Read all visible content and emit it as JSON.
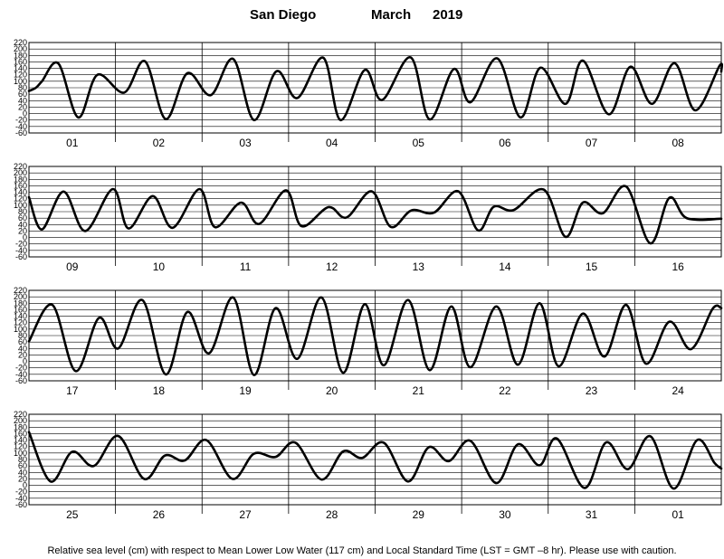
{
  "header": {
    "location": "San Diego",
    "month": "March",
    "year": "2019"
  },
  "footer": {
    "note": "Relative sea level (cm) with respect to Mean Lower Low Water (117 cm) and Local Standard Time (LST = GMT –8 hr). Please use with caution."
  },
  "chart_data": {
    "type": "line",
    "title": "San Diego March 2019",
    "ylabel": "Relative sea level (cm)",
    "ylim": [
      -60,
      220
    ],
    "yticks": [
      -60,
      -40,
      -20,
      0,
      20,
      40,
      60,
      80,
      100,
      120,
      140,
      160,
      180,
      200,
      220
    ],
    "grid": true,
    "x_units": "days (LST)",
    "panels": [
      {
        "days": [
          "01",
          "02",
          "03",
          "04",
          "05",
          "06",
          "07",
          "08"
        ],
        "x": [
          0,
          0.08,
          0.15,
          0.34,
          0.57,
          0.79,
          1.1,
          1.34,
          1.58,
          1.83,
          2.1,
          2.36,
          2.6,
          2.86,
          3.1,
          3.4,
          3.6,
          3.88,
          4.08,
          4.41,
          4.63,
          4.91,
          5.1,
          5.41,
          5.68,
          5.91,
          6.2,
          6.4,
          6.7,
          6.95,
          7.2,
          7.46,
          7.7,
          7.98,
          8.0
        ],
        "y": [
          70,
          80,
          100,
          155,
          -12,
          120,
          65,
          162,
          -17,
          125,
          57,
          169,
          -20,
          131,
          48,
          173,
          -20,
          135,
          42,
          174,
          -18,
          138,
          35,
          171,
          -12,
          142,
          30,
          164,
          -2,
          145,
          30,
          156,
          10,
          148,
          130
        ]
      },
      {
        "days": [
          "09",
          "10",
          "11",
          "12",
          "13",
          "14",
          "15",
          "16"
        ],
        "x": [
          0,
          0.15,
          0.4,
          0.65,
          0.97,
          1.15,
          1.43,
          1.66,
          1.97,
          2.15,
          2.45,
          2.66,
          2.97,
          3.15,
          3.46,
          3.67,
          3.96,
          4.18,
          4.42,
          4.68,
          4.96,
          5.19,
          5.37,
          5.6,
          5.95,
          6.2,
          6.4,
          6.63,
          6.9,
          7.18,
          7.4,
          7.6,
          8.0
        ],
        "y": [
          125,
          25,
          142,
          20,
          150,
          28,
          128,
          30,
          150,
          32,
          108,
          42,
          146,
          35,
          94,
          62,
          143,
          33,
          84,
          77,
          143,
          22,
          95,
          85,
          148,
          2,
          108,
          75,
          158,
          -18,
          123,
          60,
          58
        ]
      },
      {
        "days": [
          "17",
          "18",
          "19",
          "20",
          "21",
          "22",
          "23",
          "24"
        ],
        "x": [
          0,
          0.27,
          0.54,
          0.81,
          1.03,
          1.31,
          1.58,
          1.83,
          2.08,
          2.36,
          2.6,
          2.85,
          3.1,
          3.38,
          3.63,
          3.88,
          4.1,
          4.38,
          4.63,
          4.88,
          5.1,
          5.4,
          5.65,
          5.9,
          6.12,
          6.4,
          6.65,
          6.9,
          7.13,
          7.4,
          7.65,
          7.9,
          8.0
        ],
        "y": [
          62,
          175,
          -30,
          135,
          40,
          190,
          -40,
          153,
          25,
          198,
          -42,
          165,
          8,
          198,
          -35,
          177,
          -12,
          190,
          -27,
          170,
          -18,
          170,
          -10,
          180,
          -15,
          148,
          15,
          175,
          -7,
          123,
          38,
          163,
          165
        ]
      },
      {
        "days": [
          "25",
          "26",
          "27",
          "28",
          "29",
          "30",
          "31",
          "01"
        ],
        "x": [
          0,
          0.25,
          0.5,
          0.75,
          1.03,
          1.33,
          1.57,
          1.8,
          2.05,
          2.35,
          2.6,
          2.85,
          3.08,
          3.38,
          3.63,
          3.85,
          4.1,
          4.38,
          4.62,
          4.85,
          5.1,
          5.4,
          5.65,
          5.9,
          6.1,
          6.42,
          6.67,
          6.92,
          7.18,
          7.45,
          7.72,
          7.92,
          8.0
        ],
        "y": [
          165,
          12,
          104,
          60,
          153,
          20,
          92,
          77,
          140,
          20,
          98,
          88,
          132,
          18,
          105,
          85,
          132,
          12,
          118,
          75,
          138,
          7,
          127,
          62,
          145,
          -8,
          133,
          50,
          152,
          -10,
          140,
          70,
          52
        ]
      }
    ]
  }
}
